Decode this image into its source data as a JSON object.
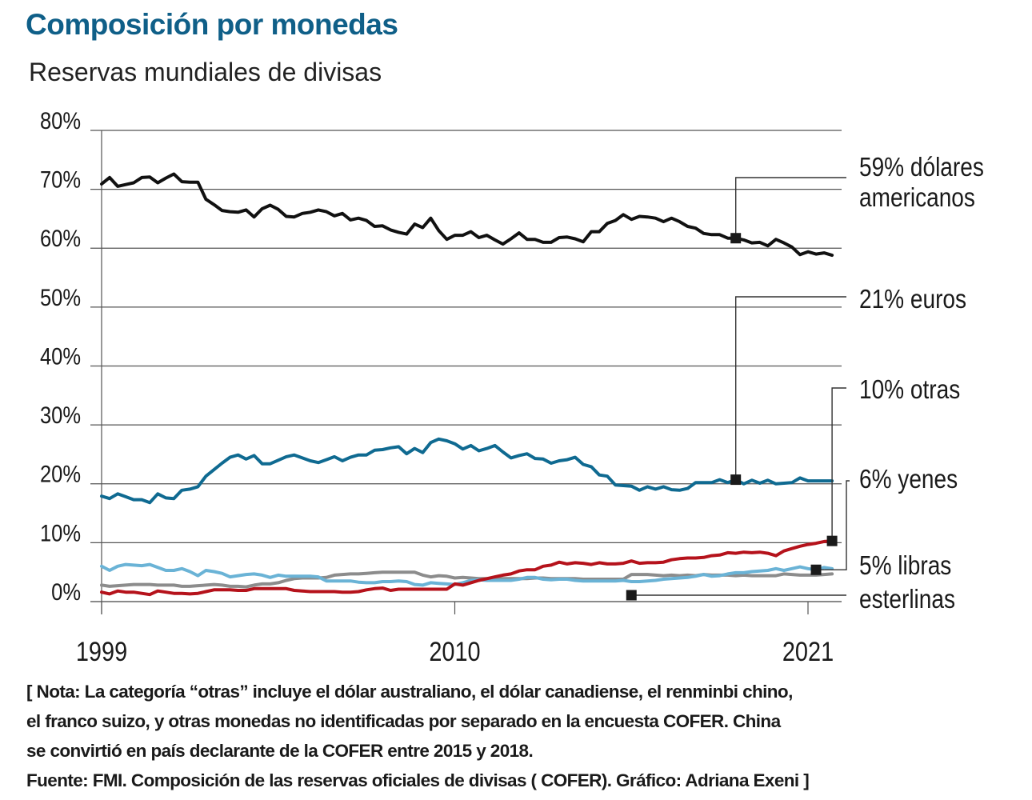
{
  "header": {
    "title": "Composición por monedas",
    "subtitle": "Reservas mundiales de divisas"
  },
  "chart_data": {
    "type": "line",
    "title": "Composición por monedas",
    "subtitle": "Reservas mundiales de divisas",
    "xlabel": "",
    "ylabel": "",
    "ylim": [
      0,
      80
    ],
    "xlim": [
      1999,
      2021.75
    ],
    "grid": true,
    "y_ticks": [
      {
        "value": 0,
        "label": "0%"
      },
      {
        "value": 10,
        "label": "10%"
      },
      {
        "value": 20,
        "label": "20%"
      },
      {
        "value": 30,
        "label": "30%"
      },
      {
        "value": 40,
        "label": "40%"
      },
      {
        "value": 50,
        "label": "50%"
      },
      {
        "value": 60,
        "label": "60%"
      },
      {
        "value": 70,
        "label": "70%"
      },
      {
        "value": 80,
        "label": "80%"
      }
    ],
    "x_ticks": [
      {
        "value": 1999,
        "label": "1999"
      },
      {
        "value": 2010,
        "label": "2010"
      },
      {
        "value": 2021,
        "label": "2021"
      }
    ],
    "x_start": 1999,
    "x_step": 0.25,
    "series": [
      {
        "name": "dólares americanos",
        "label": "59% dólares americanos",
        "label_lines": [
          "59% dólares",
          "americanos"
        ],
        "color": "#111111",
        "values": [
          70.9,
          72.0,
          70.5,
          70.8,
          71.1,
          72.0,
          72.1,
          71.1,
          71.9,
          72.6,
          71.3,
          71.2,
          71.2,
          68.3,
          67.4,
          66.4,
          66.2,
          66.1,
          66.5,
          65.3,
          66.7,
          67.3,
          66.6,
          65.4,
          65.3,
          65.9,
          66.1,
          66.5,
          66.2,
          65.5,
          65.9,
          64.8,
          65.1,
          64.7,
          63.7,
          63.8,
          63.1,
          62.7,
          62.4,
          64.1,
          63.5,
          65.1,
          63.0,
          61.5,
          62.2,
          62.2,
          62.8,
          61.8,
          62.2,
          61.4,
          60.7,
          61.6,
          62.6,
          61.5,
          61.5,
          61.0,
          61.0,
          61.8,
          61.9,
          61.6,
          61.1,
          62.8,
          62.8,
          64.2,
          64.7,
          65.7,
          64.9,
          65.4,
          65.3,
          65.1,
          64.5,
          65.1,
          64.5,
          63.7,
          63.4,
          62.5,
          62.3,
          62.3,
          61.7,
          61.7,
          61.4,
          60.9,
          61.0,
          60.4,
          61.5,
          60.9,
          60.2,
          58.9,
          59.4,
          59.0,
          59.2,
          58.8
        ]
      },
      {
        "name": "euros",
        "label": "21% euros",
        "label_lines": [
          "21% euros"
        ],
        "color": "#0f6a91",
        "values": [
          17.9,
          17.5,
          18.3,
          17.8,
          17.3,
          17.3,
          16.8,
          18.3,
          17.6,
          17.5,
          18.9,
          19.1,
          19.5,
          21.3,
          22.4,
          23.5,
          24.5,
          24.9,
          24.2,
          24.8,
          23.4,
          23.4,
          24.0,
          24.6,
          24.9,
          24.4,
          23.9,
          23.6,
          24.1,
          24.6,
          23.9,
          24.5,
          24.9,
          24.9,
          25.7,
          25.8,
          26.1,
          26.3,
          25.1,
          26.0,
          25.3,
          27.0,
          27.6,
          27.3,
          26.8,
          25.9,
          26.5,
          25.6,
          26.0,
          26.5,
          25.4,
          24.4,
          24.8,
          25.1,
          24.3,
          24.2,
          23.5,
          23.9,
          24.1,
          24.5,
          23.3,
          22.9,
          21.5,
          21.3,
          19.8,
          19.7,
          19.6,
          18.9,
          19.5,
          19.1,
          19.5,
          19.0,
          18.9,
          19.2,
          20.2,
          20.2,
          20.2,
          20.7,
          20.2,
          20.7,
          20.0,
          20.6,
          20.1,
          20.6,
          20.0,
          20.1,
          20.2,
          21.0,
          20.5,
          20.5,
          20.5,
          20.5
        ]
      },
      {
        "name": "otras",
        "label": "10% otras",
        "label_lines": [
          "10% otras"
        ],
        "color": "#b5121b",
        "values": [
          1.6,
          1.3,
          1.8,
          1.6,
          1.6,
          1.4,
          1.2,
          1.8,
          1.6,
          1.4,
          1.4,
          1.3,
          1.4,
          1.7,
          2.0,
          2.0,
          2.0,
          1.9,
          1.9,
          2.2,
          2.2,
          2.2,
          2.2,
          2.2,
          1.9,
          1.8,
          1.7,
          1.7,
          1.7,
          1.7,
          1.6,
          1.6,
          1.7,
          2.0,
          2.2,
          2.3,
          1.9,
          2.1,
          2.1,
          2.1,
          2.1,
          2.1,
          2.1,
          2.1,
          3.0,
          2.8,
          3.2,
          3.6,
          3.9,
          4.2,
          4.5,
          4.7,
          5.2,
          5.4,
          5.4,
          6.0,
          6.2,
          6.7,
          6.4,
          6.6,
          6.5,
          6.3,
          6.6,
          6.4,
          6.4,
          6.5,
          6.9,
          6.5,
          6.6,
          6.6,
          6.7,
          7.1,
          7.3,
          7.4,
          7.4,
          7.5,
          7.8,
          7.9,
          8.3,
          8.2,
          8.4,
          8.3,
          8.4,
          8.2,
          7.8,
          8.6,
          9.0,
          9.4,
          9.7,
          9.9,
          10.2,
          10.3
        ]
      },
      {
        "name": "yenes",
        "label": "6% yenes",
        "label_lines": [
          "6% yenes"
        ],
        "color": "#6ab3d6",
        "values": [
          6.0,
          5.3,
          6.0,
          6.3,
          6.2,
          6.1,
          6.3,
          5.8,
          5.3,
          5.3,
          5.6,
          5.1,
          4.4,
          5.3,
          5.1,
          4.8,
          4.2,
          4.4,
          4.6,
          4.7,
          4.5,
          4.1,
          4.5,
          4.3,
          4.3,
          4.3,
          4.3,
          4.2,
          3.5,
          3.5,
          3.5,
          3.5,
          3.3,
          3.2,
          3.2,
          3.4,
          3.4,
          3.5,
          3.4,
          2.9,
          2.8,
          3.2,
          3.1,
          3.0,
          2.9,
          3.2,
          3.6,
          3.7,
          3.6,
          3.6,
          3.6,
          3.6,
          3.8,
          4.1,
          4.1,
          3.8,
          3.7,
          3.8,
          3.8,
          3.6,
          3.5,
          3.5,
          3.5,
          3.5,
          3.5,
          3.6,
          3.4,
          3.4,
          3.5,
          3.6,
          3.8,
          3.9,
          4.0,
          4.1,
          4.3,
          4.6,
          4.3,
          4.4,
          4.7,
          4.9,
          4.9,
          5.1,
          5.2,
          5.3,
          5.6,
          5.3,
          5.6,
          5.9,
          5.6,
          5.4,
          5.8,
          5.6
        ]
      },
      {
        "name": "libras esterlinas",
        "label": "5% libras esterlinas",
        "label_lines": [
          "5% libras",
          "esterlinas"
        ],
        "color": "#8c8c8c",
        "values": [
          2.8,
          2.6,
          2.7,
          2.8,
          2.9,
          2.9,
          2.9,
          2.8,
          2.8,
          2.8,
          2.6,
          2.6,
          2.7,
          2.8,
          2.9,
          2.8,
          2.6,
          2.6,
          2.5,
          2.8,
          3.0,
          3.0,
          3.2,
          3.6,
          3.9,
          4.0,
          4.0,
          4.0,
          4.1,
          4.5,
          4.6,
          4.7,
          4.7,
          4.8,
          4.9,
          5.0,
          5.0,
          5.0,
          5.0,
          5.0,
          4.5,
          4.2,
          4.4,
          4.3,
          4.0,
          4.1,
          4.0,
          3.9,
          3.9,
          3.8,
          3.9,
          3.9,
          3.9,
          3.9,
          4.0,
          4.0,
          3.9,
          3.9,
          3.9,
          3.9,
          3.8,
          3.8,
          3.8,
          3.8,
          3.8,
          3.8,
          4.6,
          4.6,
          4.6,
          4.5,
          4.4,
          4.5,
          4.4,
          4.5,
          4.4,
          4.6,
          4.5,
          4.5,
          4.5,
          4.4,
          4.5,
          4.4,
          4.4,
          4.4,
          4.4,
          4.7,
          4.6,
          4.5,
          4.5,
          4.5,
          4.6,
          4.7
        ]
      }
    ]
  },
  "notes": {
    "lines": [
      "[ Nota: La categoría “otras” incluye el dólar australiano, el dólar canadiense, el renminbi chino,",
      "el franco suizo, y otras monedas no identificadas por separado en la encuesta COFER. China",
      "se convirtió en país declarante de la COFER entre 2015 y 2018.",
      "Fuente: FMI. Composición de las reservas oficiales de divisas ( COFER).  Gráfico: Adriana Exeni ]"
    ]
  }
}
